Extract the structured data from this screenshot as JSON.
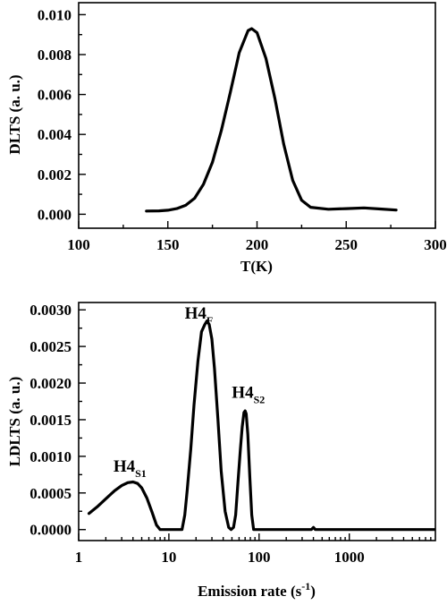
{
  "chart_data": [
    {
      "type": "line",
      "title": "",
      "xlabel": "T(K)",
      "ylabel": "DLTS (a. u.)",
      "xlim": [
        100,
        300
      ],
      "ylim": [
        -0.0007,
        0.0106
      ],
      "xscale": "linear",
      "grid": false,
      "x_ticks": [
        100,
        150,
        200,
        250,
        300
      ],
      "x_tick_labels": [
        "100",
        "150",
        "200",
        "250",
        "300"
      ],
      "y_ticks": [
        0.0,
        0.002,
        0.004,
        0.006,
        0.008,
        0.01
      ],
      "y_tick_labels": [
        "0.000",
        "0.002",
        "0.004",
        "0.006",
        "0.008",
        "0.010"
      ],
      "series": [
        {
          "x": [
            138,
            145,
            150,
            155,
            160,
            165,
            170,
            175,
            180,
            185,
            190,
            195,
            197,
            200,
            205,
            210,
            215,
            220,
            225,
            230,
            240,
            250,
            260,
            270,
            278
          ],
          "y": [
            0.00016,
            0.00017,
            0.0002,
            0.00028,
            0.00045,
            0.0008,
            0.0015,
            0.0026,
            0.0042,
            0.0061,
            0.0081,
            0.0092,
            0.0093,
            0.0091,
            0.0078,
            0.0058,
            0.0035,
            0.0017,
            0.0007,
            0.00035,
            0.00025,
            0.00028,
            0.00032,
            0.00026,
            0.00021
          ]
        }
      ],
      "annotations": []
    },
    {
      "type": "line",
      "title": "",
      "xlabel": "Emission rate (s",
      "xlabel_sup": "-1",
      "xlabel_end": ")",
      "ylabel": "LDLTS (a. u.)",
      "xlim": [
        1,
        9000
      ],
      "ylim": [
        -0.00015,
        0.0031
      ],
      "xscale": "log",
      "grid": false,
      "x_ticks": [
        1,
        10,
        100,
        1000
      ],
      "x_tick_labels": [
        "1",
        "10",
        "100",
        "1000"
      ],
      "y_ticks": [
        0.0,
        0.0005,
        0.001,
        0.0015,
        0.002,
        0.0025,
        0.003
      ],
      "y_tick_labels": [
        "0.0000",
        "0.0005",
        "0.0010",
        "0.0015",
        "0.0020",
        "0.0025",
        "0.0030"
      ],
      "series": [
        {
          "x": [
            1.3,
            1.6,
            2.0,
            2.5,
            3.0,
            3.5,
            4.0,
            4.5,
            5.0,
            5.7,
            6.5,
            7.3,
            8.0,
            14.0,
            15.0,
            16.0,
            17.5,
            19.0,
            21.0,
            23.0,
            25.0,
            26.5,
            28.0,
            30.0,
            32.0,
            35.0,
            38.0,
            42.0,
            46.0,
            49.0,
            52.0,
            55.0,
            58.0,
            62.0,
            65.0,
            68.0,
            70.0,
            72.0,
            75.0,
            79.0,
            83.0,
            87.0,
            100,
            300,
            380,
            400,
            420,
            500,
            1000,
            9000
          ],
          "y": [
            0.00022,
            0.00031,
            0.00042,
            0.00053,
            0.0006,
            0.00064,
            0.00065,
            0.00063,
            0.00057,
            0.00043,
            0.00024,
            6e-05,
            0.0,
            0.0,
            0.0002,
            0.00055,
            0.0011,
            0.0017,
            0.0023,
            0.0027,
            0.0028,
            0.00285,
            0.0028,
            0.0026,
            0.0022,
            0.0015,
            0.0008,
            0.00025,
            3e-05,
            0.0,
            3e-05,
            0.0002,
            0.0006,
            0.0011,
            0.0014,
            0.0016,
            0.00162,
            0.00158,
            0.0013,
            0.0007,
            0.0002,
            0.0,
            0.0,
            0.0,
            0.0,
            3e-05,
            0.0,
            0.0,
            0.0,
            0.0
          ]
        }
      ],
      "annotations": [
        {
          "text": "H4",
          "sub": "S1",
          "x": 3.7,
          "y": 0.00079
        },
        {
          "text": "H4",
          "sub": "F",
          "x": 21.5,
          "y": 0.00288
        },
        {
          "text": "H4",
          "sub": "S2",
          "x": 76,
          "y": 0.0018
        }
      ]
    }
  ]
}
